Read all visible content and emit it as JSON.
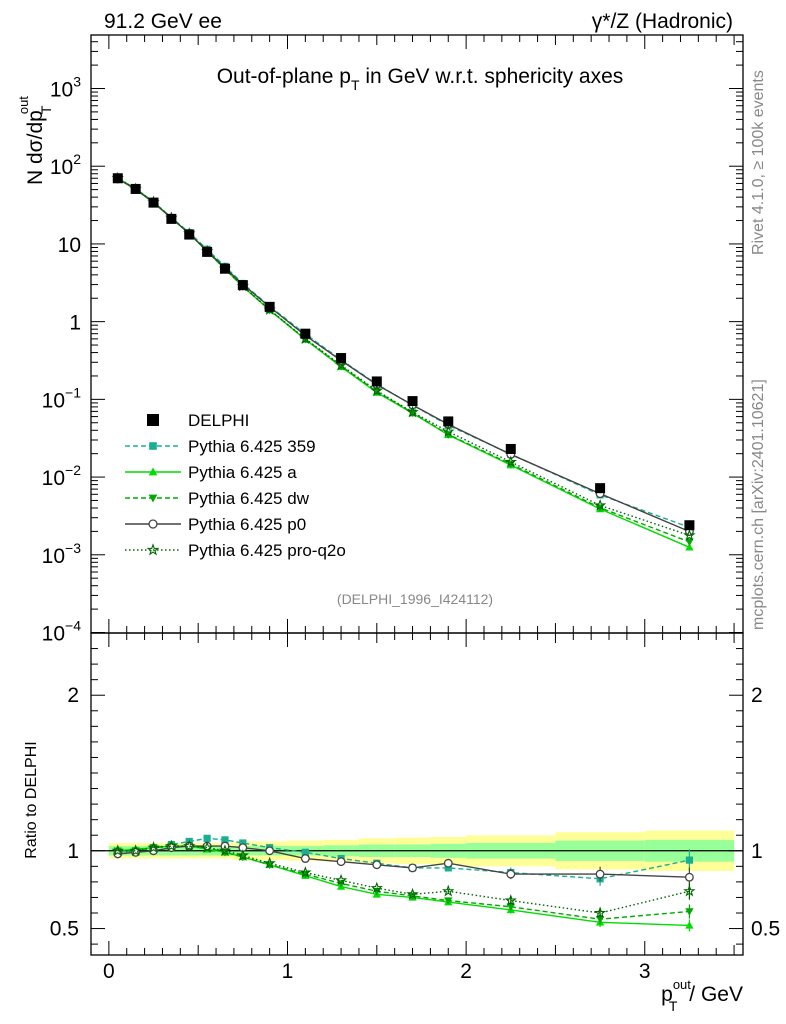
{
  "chart_data": {
    "type": "line",
    "header_left": "91.2 GeV ee",
    "header_right": "γ*/Z (Hadronic)",
    "title": "Out-of-plane p_T in GeV w.r.t. sphericity axes",
    "title_parts": {
      "pre": "Out-of-plane p",
      "sub": "T",
      "post": " in GeV w.r.t. sphericity axes"
    },
    "ylabel": "N  dσ/dp_T^out",
    "ylabel_parts": {
      "pre": "N  dσ/dp",
      "sup": "out",
      "sub": "T"
    },
    "ratio_ylabel": "Ratio to DELPHI",
    "xlabel": "p_T^out / GeV",
    "xlabel_parts": {
      "pre": "p",
      "sup": "out",
      "sub": "T",
      "post": " / GeV"
    },
    "side_label_top": "Rivet 4.1.0, ≥ 100k events",
    "side_label_bottom": "mcplots.cern.ch [arXiv:2401.10621]",
    "analysis_id": "(DELPHI_1996_I424112)",
    "xlim": [
      -0.1,
      3.55
    ],
    "ylim": [
      0.0001,
      5000
    ],
    "yscale": "log",
    "ratio_ylim": [
      0.33,
      2.4
    ],
    "x_ticks": [
      0,
      1,
      2,
      3
    ],
    "y_ticks": [
      {
        "value": 0.0001,
        "base": "10",
        "exp": "−4"
      },
      {
        "value": 0.001,
        "base": "10",
        "exp": "−3"
      },
      {
        "value": 0.01,
        "base": "10",
        "exp": "−2"
      },
      {
        "value": 0.1,
        "base": "10",
        "exp": "−1"
      },
      {
        "value": 1,
        "base": "1",
        "exp": ""
      },
      {
        "value": 10,
        "base": "10",
        "exp": ""
      },
      {
        "value": 100,
        "base": "10",
        "exp": "2"
      },
      {
        "value": 1000,
        "base": "10",
        "exp": "3"
      }
    ],
    "ratio_ticks": [
      {
        "value": 0.5,
        "label": "0.5"
      },
      {
        "value": 1,
        "label": "1"
      },
      {
        "value": 2,
        "label": "2"
      }
    ],
    "x": [
      0.05,
      0.15,
      0.25,
      0.35,
      0.45,
      0.55,
      0.65,
      0.75,
      0.9,
      1.1,
      1.3,
      1.5,
      1.7,
      1.9,
      2.25,
      2.75,
      3.25
    ],
    "bin_edges": [
      0.0,
      0.1,
      0.2,
      0.3,
      0.4,
      0.5,
      0.6,
      0.7,
      0.8,
      1.0,
      1.2,
      1.4,
      1.6,
      1.8,
      2.0,
      2.5,
      3.0,
      3.5
    ],
    "band_inner": [
      0.03,
      0.03,
      0.03,
      0.03,
      0.03,
      0.03,
      0.03,
      0.03,
      0.03,
      0.03,
      0.035,
      0.04,
      0.04,
      0.045,
      0.05,
      0.065,
      0.07
    ],
    "band_outer": [
      0.05,
      0.05,
      0.05,
      0.05,
      0.05,
      0.05,
      0.05,
      0.06,
      0.06,
      0.065,
      0.07,
      0.08,
      0.085,
      0.09,
      0.1,
      0.12,
      0.13
    ],
    "data": {
      "name": "DELPHI",
      "values": [
        70,
        51,
        34,
        21,
        13.2,
        7.9,
        4.8,
        2.95,
        1.55,
        0.7,
        0.34,
        0.17,
        0.095,
        0.052,
        0.023,
        0.0072,
        0.0024
      ]
    },
    "series": [
      {
        "name": "Pythia 6.425 359",
        "color": "#1aaf8f",
        "dash": "5,3",
        "marker": "square",
        "ratio": [
          0.99,
          1.0,
          1.02,
          1.04,
          1.06,
          1.08,
          1.07,
          1.05,
          1.02,
          0.99,
          0.95,
          0.92,
          0.89,
          0.89,
          0.86,
          0.82,
          0.94
        ]
      },
      {
        "name": "Pythia 6.425 a",
        "color": "#00dd00",
        "dash": "",
        "marker": "triangle-up",
        "ratio": [
          1.0,
          1.01,
          1.02,
          1.03,
          1.03,
          1.01,
          0.99,
          0.96,
          0.91,
          0.84,
          0.77,
          0.72,
          0.7,
          0.67,
          0.62,
          0.54,
          0.52
        ]
      },
      {
        "name": "Pythia 6.425 dw",
        "color": "#00aa00",
        "dash": "5,3",
        "marker": "triangle-down",
        "ratio": [
          1.0,
          1.0,
          1.02,
          1.03,
          1.03,
          1.02,
          0.99,
          0.96,
          0.91,
          0.85,
          0.79,
          0.74,
          0.71,
          0.68,
          0.64,
          0.56,
          0.61
        ]
      },
      {
        "name": "Pythia 6.425 p0",
        "color": "#444444",
        "dash": "",
        "marker": "circle",
        "ratio": [
          0.98,
          0.99,
          1.0,
          1.02,
          1.03,
          1.03,
          1.03,
          1.02,
          1.0,
          0.95,
          0.93,
          0.91,
          0.89,
          0.92,
          0.85,
          0.85,
          0.83
        ]
      },
      {
        "name": "Pythia 6.425 pro-q2o",
        "color": "#006600",
        "dash": "1.5,2.5",
        "marker": "star",
        "ratio": [
          1.0,
          1.0,
          1.02,
          1.03,
          1.03,
          1.02,
          1.0,
          0.97,
          0.92,
          0.86,
          0.81,
          0.76,
          0.72,
          0.74,
          0.68,
          0.6,
          0.74
        ]
      }
    ]
  }
}
